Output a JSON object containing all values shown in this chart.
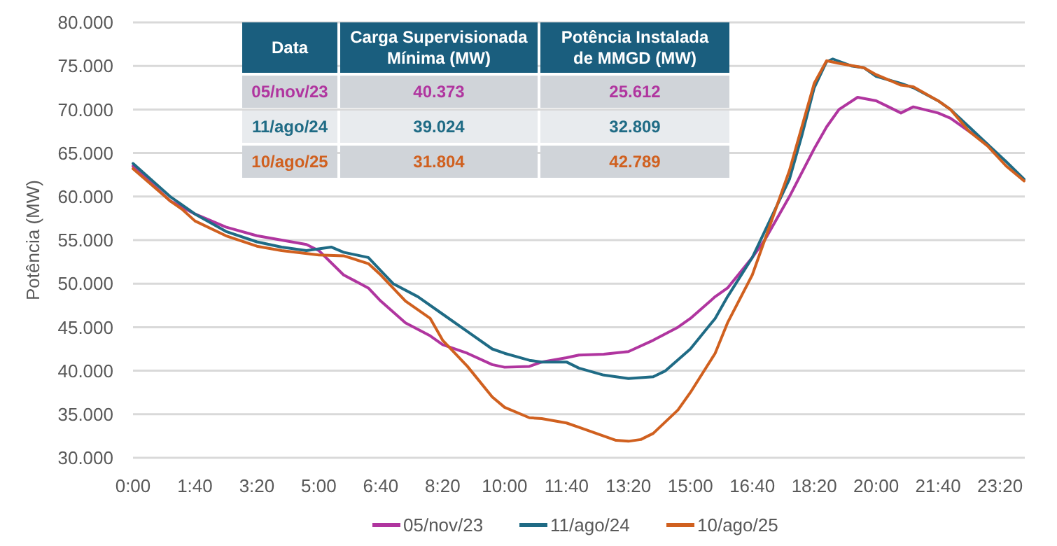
{
  "chart_data": {
    "type": "line",
    "ylabel": "Potência (MW)",
    "xlim": [
      0,
      24
    ],
    "xticks": [
      {
        "value": 0,
        "label": "0:00"
      },
      {
        "value": 1.6667,
        "label": "1:40"
      },
      {
        "value": 3.3333,
        "label": "3:20"
      },
      {
        "value": 5,
        "label": "5:00"
      },
      {
        "value": 6.6667,
        "label": "6:40"
      },
      {
        "value": 8.3333,
        "label": "8:20"
      },
      {
        "value": 10,
        "label": "10:00"
      },
      {
        "value": 11.6667,
        "label": "11:40"
      },
      {
        "value": 13.3333,
        "label": "13:20"
      },
      {
        "value": 15,
        "label": "15:00"
      },
      {
        "value": 16.6667,
        "label": "16:40"
      },
      {
        "value": 18.3333,
        "label": "18:20"
      },
      {
        "value": 20,
        "label": "20:00"
      },
      {
        "value": 21.6667,
        "label": "21:40"
      },
      {
        "value": 23.3333,
        "label": "23:20"
      }
    ],
    "ylim": [
      30000,
      80000
    ],
    "yticks": [
      {
        "value": 30000,
        "label": "30.000"
      },
      {
        "value": 35000,
        "label": "35.000"
      },
      {
        "value": 40000,
        "label": "40.000"
      },
      {
        "value": 45000,
        "label": "45.000"
      },
      {
        "value": 50000,
        "label": "50.000"
      },
      {
        "value": 55000,
        "label": "55.000"
      },
      {
        "value": 60000,
        "label": "60.000"
      },
      {
        "value": 65000,
        "label": "65.000"
      },
      {
        "value": 70000,
        "label": "70.000"
      },
      {
        "value": 75000,
        "label": "75.000"
      },
      {
        "value": 80000,
        "label": "80.000"
      }
    ],
    "grid": "y",
    "legend": "bottom",
    "marker": "none",
    "line_style": "solid",
    "annotations": [
      "Data",
      "Carga Supervisionada Mínima (MW)",
      "Potência Instalada de MMGD (MW)",
      "05/nov/23",
      "40.373",
      "25.612",
      "11/ago/24",
      "39.024",
      "32.809",
      "10/ago/25",
      "31.804",
      "42.789"
    ],
    "series": [
      {
        "name": "05/nov/23",
        "color": "#b0359f",
        "x": [
          0,
          1,
          1.6667,
          2.5,
          3.3333,
          4,
          4.6667,
          5,
          5.6667,
          6.3333,
          6.6667,
          7.3333,
          8,
          8.3333,
          9,
          9.6667,
          10,
          10.6667,
          11,
          11.6667,
          12,
          12.6667,
          13.3333,
          14,
          14.6667,
          15,
          15.6667,
          16,
          16.6667,
          17,
          17.6667,
          18.3333,
          18.6667,
          19,
          19.5,
          20,
          20.3333,
          20.6667,
          21,
          21.6667,
          22,
          22.5,
          23
        ],
        "values": [
          63500,
          59500,
          58000,
          56500,
          55500,
          55000,
          54500,
          53800,
          51000,
          49500,
          48000,
          45500,
          44000,
          43000,
          42000,
          40700,
          40400,
          40500,
          41000,
          41500,
          41800,
          41900,
          42200,
          43500,
          45000,
          46000,
          48500,
          49500,
          53000,
          55000,
          60000,
          65500,
          68000,
          70000,
          71400,
          71000,
          70300,
          69600,
          70300,
          69600,
          69000,
          67500,
          66000
        ]
      },
      {
        "name": "11/ago/24",
        "color": "#1f6b85",
        "x": [
          0,
          1,
          1.6667,
          2.5,
          3.3333,
          4,
          4.6667,
          5,
          5.3333,
          5.6667,
          6.3333,
          6.6667,
          7,
          7.6667,
          8.3333,
          9,
          9.6667,
          10,
          10.6667,
          11,
          11.6667,
          12,
          12.6667,
          13.3333,
          14,
          14.3333,
          15,
          15.6667,
          16,
          16.6667,
          17,
          17.6667,
          18,
          18.3333,
          18.6667,
          18.8333,
          19.3333,
          19.6667,
          20,
          20.6667,
          21,
          21.6667,
          22,
          22.5,
          23,
          23.5,
          23.98
        ],
        "values": [
          63800,
          60000,
          58000,
          56000,
          54800,
          54200,
          53800,
          54000,
          54200,
          53600,
          53000,
          51500,
          50000,
          48500,
          46500,
          44500,
          42500,
          42000,
          41200,
          41000,
          41000,
          40300,
          39500,
          39100,
          39300,
          40000,
          42500,
          46000,
          48500,
          53000,
          56000,
          62000,
          67000,
          72500,
          75500,
          75800,
          75000,
          74800,
          73800,
          73000,
          72500,
          71000,
          70000,
          68000,
          66000,
          64000,
          62000
        ]
      },
      {
        "name": "10/ago/25",
        "color": "#d0601f",
        "x": [
          0,
          1,
          1.3333,
          1.6667,
          2.5,
          3.3333,
          4,
          5,
          5.6667,
          6.3333,
          6.6667,
          7.3333,
          8,
          8.3333,
          9,
          9.6667,
          10,
          10.6667,
          11,
          11.6667,
          12,
          12.6667,
          13,
          13.3333,
          13.6667,
          14,
          14.6667,
          15,
          15.6667,
          16,
          16.6667,
          17,
          17.6667,
          18,
          18.3333,
          18.6667,
          19,
          19.6667,
          20,
          20.6667,
          21,
          21.6667,
          22,
          22.5,
          23,
          23.5,
          23.98
        ],
        "values": [
          63200,
          59500,
          58500,
          57200,
          55500,
          54300,
          53800,
          53300,
          53200,
          52300,
          51000,
          48000,
          46000,
          43500,
          40500,
          37000,
          35800,
          34600,
          34500,
          34000,
          33500,
          32500,
          32000,
          31900,
          32100,
          32800,
          35500,
          37500,
          42000,
          45500,
          51000,
          55000,
          63000,
          68000,
          73000,
          75600,
          75300,
          74800,
          74000,
          72800,
          72600,
          71000,
          70000,
          67500,
          65800,
          63500,
          61800
        ]
      }
    ]
  }
}
